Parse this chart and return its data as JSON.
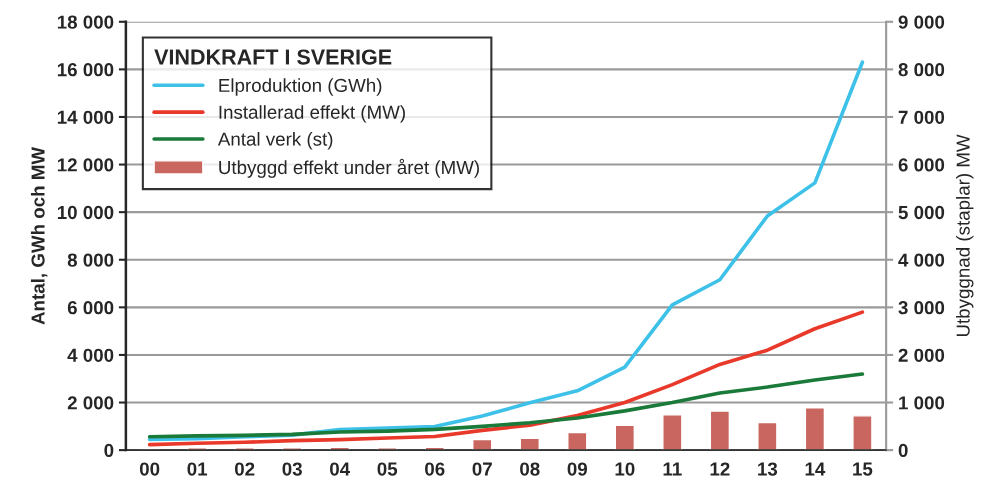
{
  "chart_data": {
    "type": "line",
    "legend_title": "VINDKRAFT I SVERIGE",
    "ylabel": "Antal, GWh och MW",
    "y2label": "Utbyggnad (staplar) MW",
    "categories": [
      "00",
      "01",
      "02",
      "03",
      "04",
      "05",
      "06",
      "07",
      "08",
      "09",
      "10",
      "11",
      "12",
      "13",
      "14",
      "15"
    ],
    "series": [
      {
        "name": "Elproduktion (GWh)",
        "color": "#3ec1e8",
        "values": [
          450,
          480,
          560,
          630,
          860,
          930,
          990,
          1430,
          1990,
          2490,
          3490,
          6100,
          7160,
          9840,
          11230,
          16300
        ]
      },
      {
        "name": "Installerad effekt (MW)",
        "color": "#e8392a",
        "values": [
          230,
          290,
          330,
          400,
          440,
          510,
          570,
          830,
          1050,
          1450,
          2000,
          2750,
          3600,
          4200,
          5100,
          5800
        ]
      },
      {
        "name": "Antal verk (st)",
        "color": "#1a7a3a",
        "values": [
          560,
          600,
          620,
          660,
          760,
          800,
          870,
          1000,
          1150,
          1350,
          1650,
          2000,
          2400,
          2650,
          2950,
          3200
        ]
      },
      {
        "name": "Utbyggd effekt under året (MW)",
        "type": "bar",
        "axis": "y2",
        "color": "#c9665f",
        "values": [
          null,
          50,
          50,
          50,
          60,
          50,
          60,
          220,
          250,
          370,
          520,
          740,
          820,
          580,
          890,
          720
        ]
      }
    ],
    "ylim": [
      0,
      18000
    ],
    "yticks": [
      0,
      {
        "value": 2000,
        "label": "2 000"
      },
      {
        "value": 4000,
        "label": "4 000"
      },
      {
        "value": 6000,
        "label": "6 000"
      },
      {
        "value": 8000,
        "label": "8 000"
      },
      {
        "value": 10000,
        "label": "10 000"
      },
      {
        "value": 12000,
        "label": "12 000"
      },
      {
        "value": 14000,
        "label": "14 000"
      },
      {
        "value": 16000,
        "label": "16 000"
      },
      {
        "value": 18000,
        "label": "18 000"
      }
    ],
    "y2lim": [
      0,
      9000
    ],
    "y2ticks": [
      0,
      {
        "value": 1000,
        "label": "1 000"
      },
      {
        "value": 2000,
        "label": "2 000"
      },
      {
        "value": 3000,
        "label": "3 000"
      },
      {
        "value": 4000,
        "label": "4 000"
      },
      {
        "value": 5000,
        "label": "5 000"
      },
      {
        "value": 6000,
        "label": "6 000"
      },
      {
        "value": 7000,
        "label": "7 000"
      },
      {
        "value": 8000,
        "label": "8 000"
      },
      {
        "value": 9000,
        "label": "9 000"
      }
    ],
    "grid": "y",
    "legend": "top left",
    "marker": "none",
    "line_style": "solid"
  }
}
